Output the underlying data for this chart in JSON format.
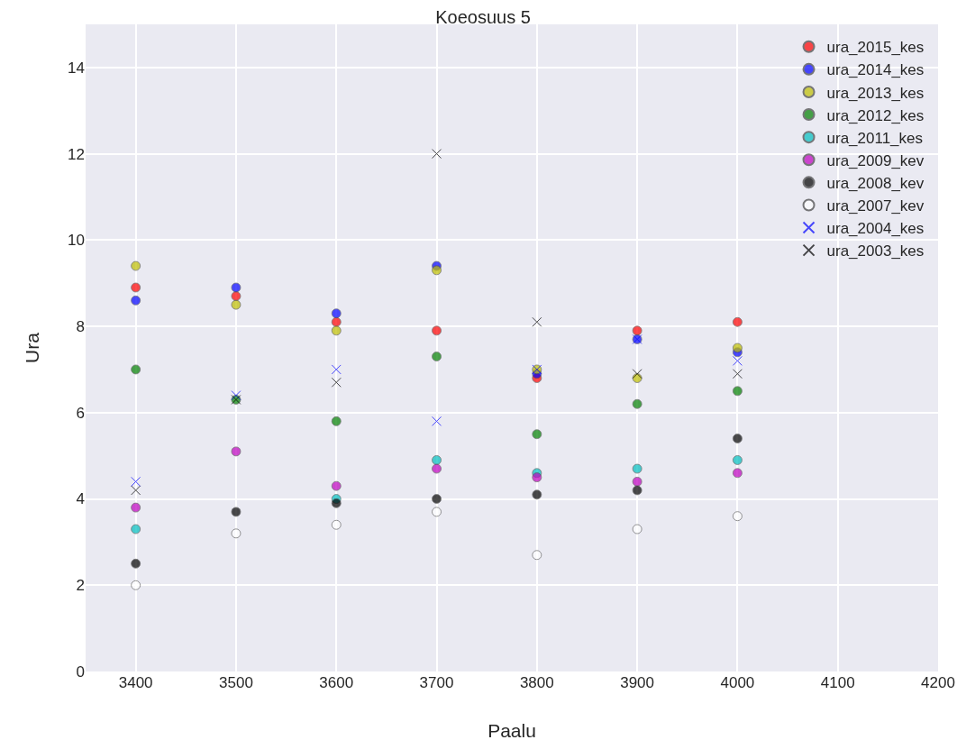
{
  "chart_data": {
    "type": "scatter",
    "title": "Koeosuus 5",
    "xlabel": "Paalu",
    "ylabel": "Ura",
    "x": [
      3400,
      3500,
      3600,
      3700,
      3800,
      3900,
      4000
    ],
    "xlim": [
      3350,
      4200
    ],
    "xticks": [
      3400,
      3500,
      3600,
      3700,
      3800,
      3900,
      4000,
      4100,
      4200
    ],
    "ylim": [
      0,
      15
    ],
    "yticks": [
      0,
      2,
      4,
      6,
      8,
      10,
      12,
      14
    ],
    "grid": true,
    "legend": "top right",
    "series": [
      {
        "name": "ura_2015_kes",
        "color": "#ff0000",
        "marker": "circle",
        "values": [
          8.9,
          8.7,
          8.1,
          7.9,
          6.8,
          7.9,
          8.1
        ]
      },
      {
        "name": "ura_2014_kes",
        "color": "#0000ff",
        "marker": "circle",
        "values": [
          8.6,
          8.9,
          8.3,
          9.4,
          6.9,
          7.7,
          7.4
        ]
      },
      {
        "name": "ura_2013_kes",
        "color": "#bfbf00",
        "marker": "circle",
        "values": [
          9.4,
          8.5,
          7.9,
          9.3,
          7.0,
          6.8,
          7.5
        ]
      },
      {
        "name": "ura_2012_kes",
        "color": "#008000",
        "marker": "circle",
        "values": [
          7.0,
          6.3,
          5.8,
          7.3,
          5.5,
          6.2,
          6.5
        ]
      },
      {
        "name": "ura_2011_kes",
        "color": "#00bfbf",
        "marker": "circle",
        "values": [
          3.3,
          null,
          4.0,
          4.9,
          4.6,
          4.7,
          4.9
        ]
      },
      {
        "name": "ura_2009_kev",
        "color": "#bf00bf",
        "marker": "circle",
        "values": [
          3.8,
          5.1,
          4.3,
          4.7,
          4.5,
          4.4,
          4.6
        ]
      },
      {
        "name": "ura_2008_kev",
        "color": "#000000",
        "marker": "circle",
        "values": [
          2.5,
          3.7,
          3.9,
          4.0,
          4.1,
          4.2,
          5.4
        ]
      },
      {
        "name": "ura_2007_kev",
        "color": "#ffffff",
        "marker": "circle",
        "values": [
          2.0,
          3.2,
          3.4,
          3.7,
          2.7,
          3.3,
          3.6
        ]
      },
      {
        "name": "ura_2004_kes",
        "color": "#0000ff",
        "marker": "cross",
        "values": [
          4.4,
          6.4,
          7.0,
          5.8,
          7.0,
          7.7,
          7.2
        ]
      },
      {
        "name": "ura_2003_kes",
        "color": "#000000",
        "marker": "cross",
        "values": [
          4.2,
          6.3,
          6.7,
          12.0,
          8.1,
          6.9,
          6.9
        ]
      }
    ]
  }
}
